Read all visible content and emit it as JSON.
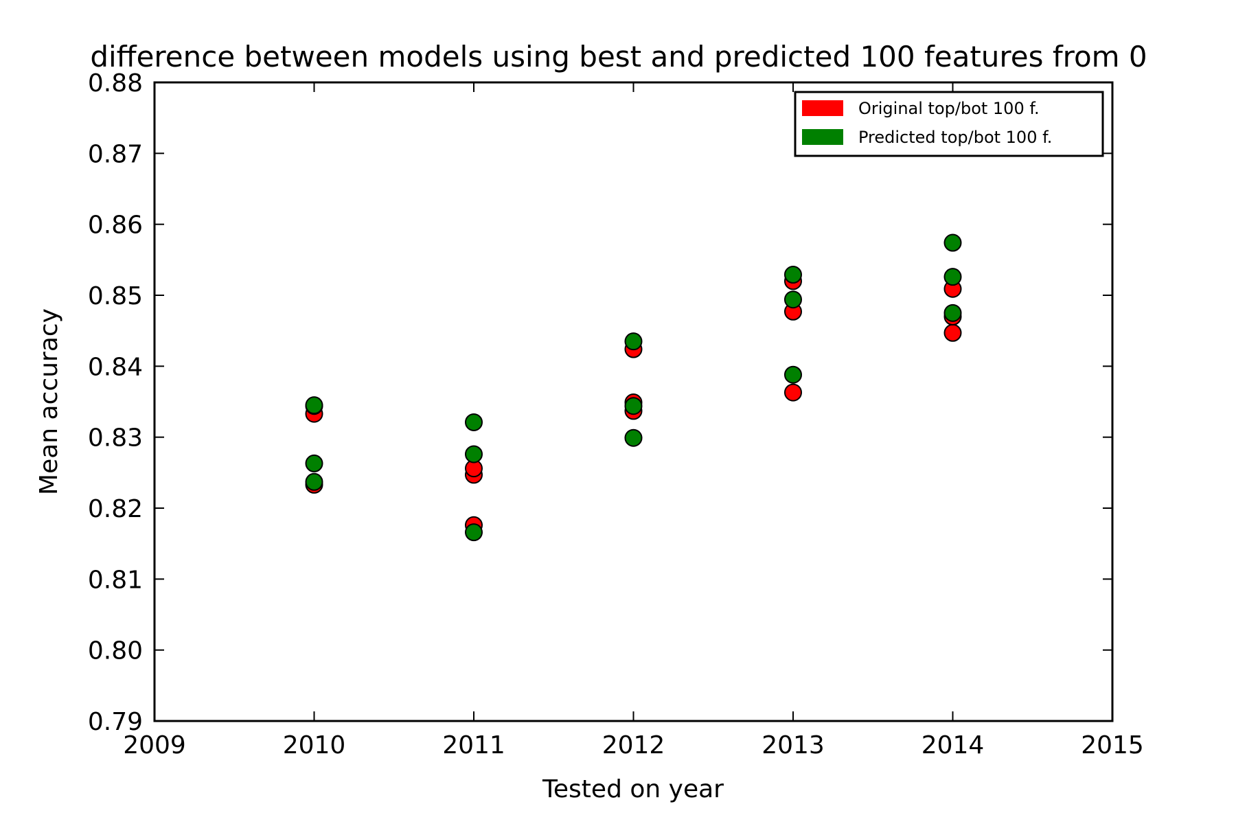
{
  "chart_data": {
    "type": "scatter",
    "title": "difference between models using best and predicted 100 features from 0",
    "xlabel": "Tested on year",
    "ylabel": "Mean accuracy",
    "xlim": [
      2009,
      2015
    ],
    "ylim": [
      0.79,
      0.88
    ],
    "x_ticks": [
      "2009",
      "2010",
      "2011",
      "2012",
      "2013",
      "2014",
      "2015"
    ],
    "y_ticks": [
      "0.79",
      "0.80",
      "0.81",
      "0.82",
      "0.83",
      "0.84",
      "0.85",
      "0.86",
      "0.87",
      "0.88"
    ],
    "grid": false,
    "legend_position": "top-right",
    "series": [
      {
        "name": "Original top/bot 100 f.",
        "color": "#ff0000",
        "points": [
          [
            2010,
            0.8233
          ],
          [
            2010,
            0.8333
          ],
          [
            2010,
            0.8344
          ],
          [
            2011,
            0.8176
          ],
          [
            2011,
            0.8247
          ],
          [
            2011,
            0.8256
          ],
          [
            2012,
            0.8337
          ],
          [
            2012,
            0.8349
          ],
          [
            2012,
            0.8424
          ],
          [
            2013,
            0.8363
          ],
          [
            2013,
            0.8477
          ],
          [
            2013,
            0.852
          ],
          [
            2014,
            0.8447
          ],
          [
            2014,
            0.847
          ],
          [
            2014,
            0.8509
          ]
        ]
      },
      {
        "name": "Predicted top/bot 100 f.",
        "color": "#008000",
        "points": [
          [
            2010,
            0.8237
          ],
          [
            2010,
            0.8263
          ],
          [
            2010,
            0.8345
          ],
          [
            2011,
            0.8166
          ],
          [
            2011,
            0.8276
          ],
          [
            2011,
            0.8321
          ],
          [
            2012,
            0.8299
          ],
          [
            2012,
            0.8344
          ],
          [
            2012,
            0.8435
          ],
          [
            2013,
            0.8388
          ],
          [
            2013,
            0.8494
          ],
          [
            2013,
            0.8529
          ],
          [
            2014,
            0.8475
          ],
          [
            2014,
            0.8526
          ],
          [
            2014,
            0.8574
          ]
        ]
      }
    ]
  }
}
